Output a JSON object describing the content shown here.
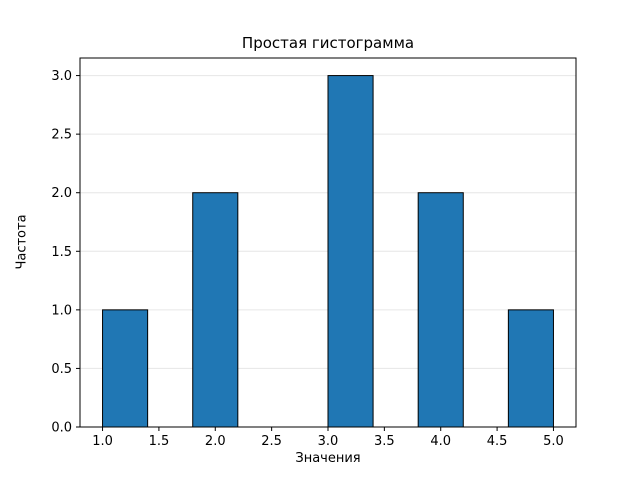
{
  "chart_data": {
    "type": "bar",
    "subtype": "histogram",
    "title": "Простая гистограмма",
    "xlabel": "Значения",
    "ylabel": "Частота",
    "bar_color": "#2077b4",
    "bar_edge_color": "#000000",
    "grid": true,
    "grid_axis": "y",
    "grid_color": "#e6e6e6",
    "spine_color": "#000000",
    "xlim": [
      0.8,
      5.2
    ],
    "ylim": [
      0,
      3.15
    ],
    "xticks": [
      1.0,
      1.5,
      2.0,
      2.5,
      3.0,
      3.5,
      4.0,
      4.5,
      5.0
    ],
    "yticks": [
      0.0,
      0.5,
      1.0,
      1.5,
      2.0,
      2.5,
      3.0
    ],
    "bin_width": 0.4,
    "bars": [
      {
        "x0": 1.0,
        "x1": 1.4,
        "count": 1
      },
      {
        "x0": 1.8,
        "x1": 2.2,
        "count": 2
      },
      {
        "x0": 3.0,
        "x1": 3.4,
        "count": 3
      },
      {
        "x0": 3.8,
        "x1": 4.2,
        "count": 2
      },
      {
        "x0": 4.6,
        "x1": 5.0,
        "count": 1
      }
    ]
  }
}
